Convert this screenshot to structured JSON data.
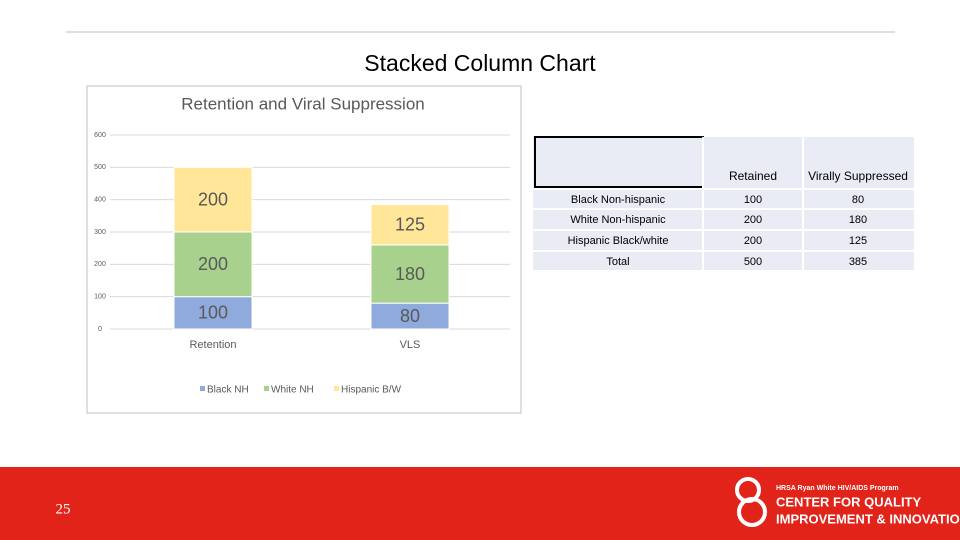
{
  "slide_title": "Stacked Column Chart",
  "chart_data": {
    "type": "stacked_bar",
    "title": "Retention and Viral Suppression",
    "categories": [
      "Retention",
      "VLS"
    ],
    "series": [
      {
        "name": "Black NH",
        "color": "#8faadc",
        "values": [
          100,
          80
        ]
      },
      {
        "name": "White NH",
        "color": "#a9d18e",
        "values": [
          200,
          180
        ]
      },
      {
        "name": "Hispanic B/W",
        "color": "#ffe699",
        "values": [
          200,
          125
        ]
      }
    ],
    "ylim": [
      0,
      600
    ],
    "yticks": [
      0,
      100,
      200,
      300,
      400,
      500,
      600
    ],
    "grid": true,
    "legend": "bottom"
  },
  "table": {
    "columns": [
      "Retained",
      "Virally Suppressed"
    ],
    "rows": [
      [
        "Black Non-hispanic",
        100,
        80
      ],
      [
        "White Non-hispanic",
        200,
        180
      ],
      [
        "Hispanic Black/white",
        200,
        125
      ],
      [
        "Total",
        500,
        385
      ]
    ]
  },
  "footer": {
    "slide_number": "25",
    "program": "HRSA Ryan White HIV/AIDS Program",
    "line1": "CENTER FOR QUALITY",
    "line2": "IMPROVEMENT & INNOVATION"
  }
}
